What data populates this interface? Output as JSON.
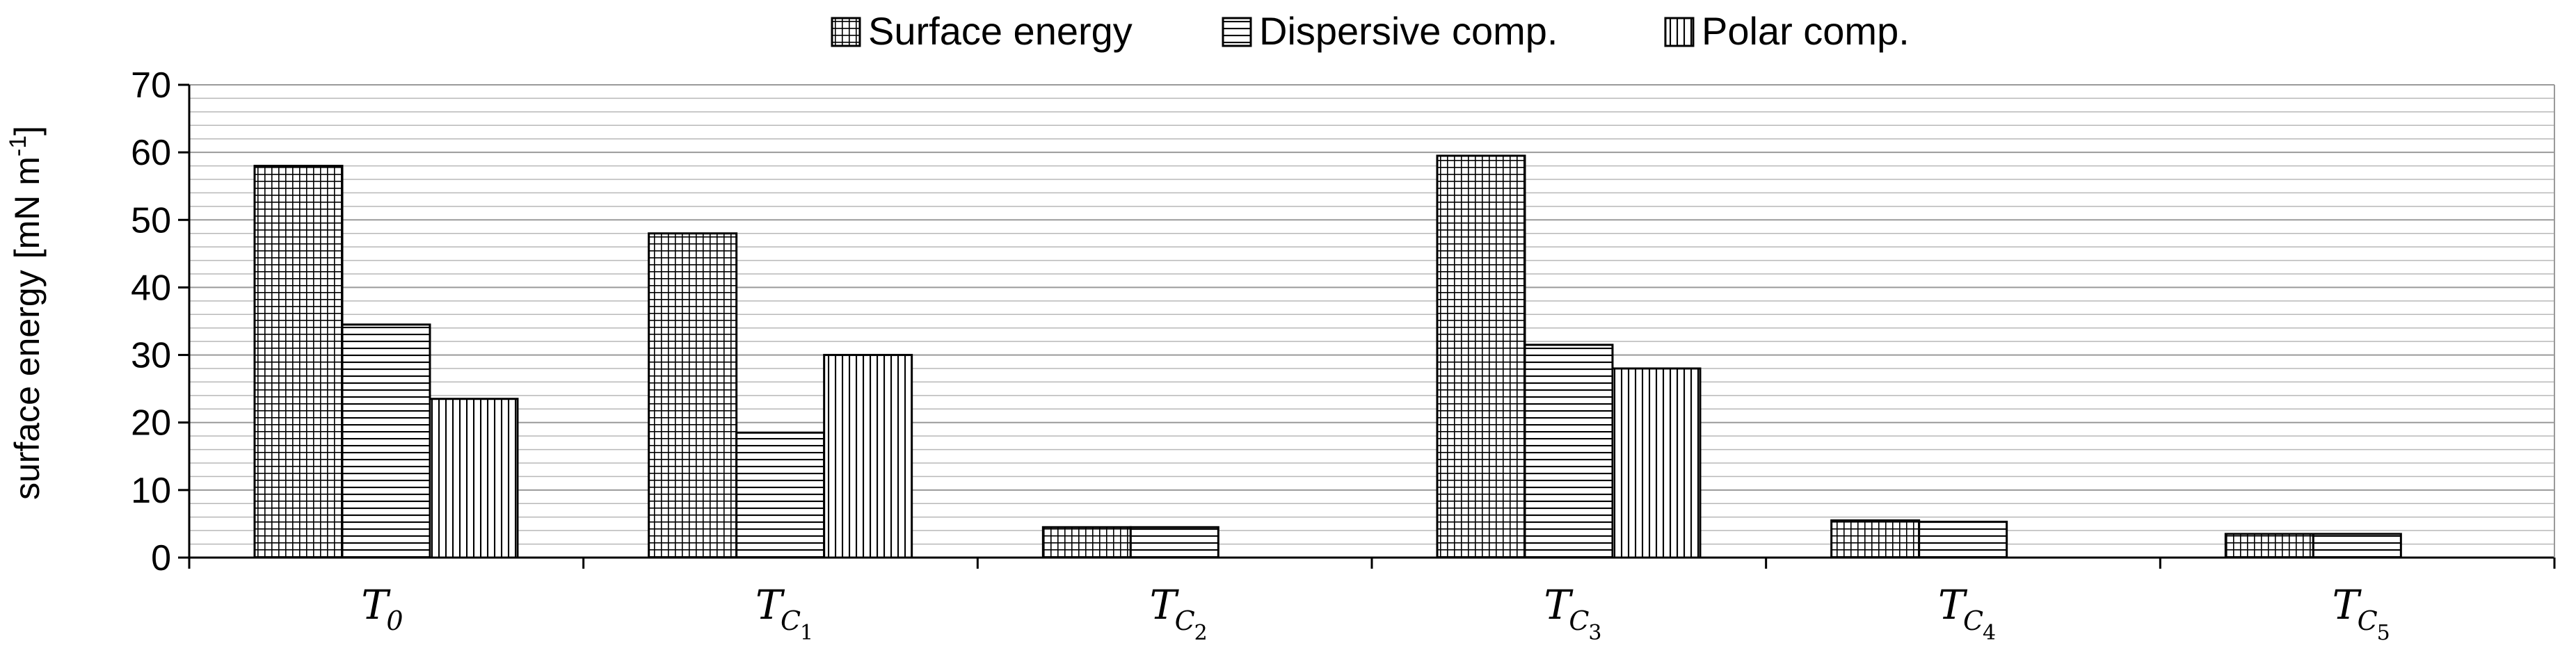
{
  "chart_data": {
    "type": "bar",
    "title": "",
    "xlabel": "",
    "ylabel": "surface energy",
    "ylabel_unit": "[mN m",
    "ylabel_sup": "-1",
    "ylabel_close": "]",
    "ylim": [
      0,
      70
    ],
    "yticks": [
      0,
      10,
      20,
      30,
      40,
      50,
      60,
      70
    ],
    "grid": true,
    "legend_position": "top-center",
    "categories": [
      {
        "main": "T",
        "sub": "0",
        "subsub": ""
      },
      {
        "main": "T",
        "sub": "C",
        "subsub": "1"
      },
      {
        "main": "T",
        "sub": "C",
        "subsub": "2"
      },
      {
        "main": "T",
        "sub": "C",
        "subsub": "3"
      },
      {
        "main": "T",
        "sub": "C",
        "subsub": "4"
      },
      {
        "main": "T",
        "sub": "C",
        "subsub": "5"
      }
    ],
    "series": [
      {
        "name": "Surface energy",
        "pattern": "grid",
        "values": [
          58,
          48,
          4.5,
          59.5,
          5.5,
          3.5
        ]
      },
      {
        "name": "Dispersive comp.",
        "pattern": "horizontal",
        "values": [
          34.5,
          18.5,
          4.5,
          31.5,
          5.3,
          3.5
        ]
      },
      {
        "name": "Polar comp.",
        "pattern": "vertical",
        "values": [
          23.5,
          30,
          0,
          28,
          0,
          0
        ]
      }
    ]
  }
}
